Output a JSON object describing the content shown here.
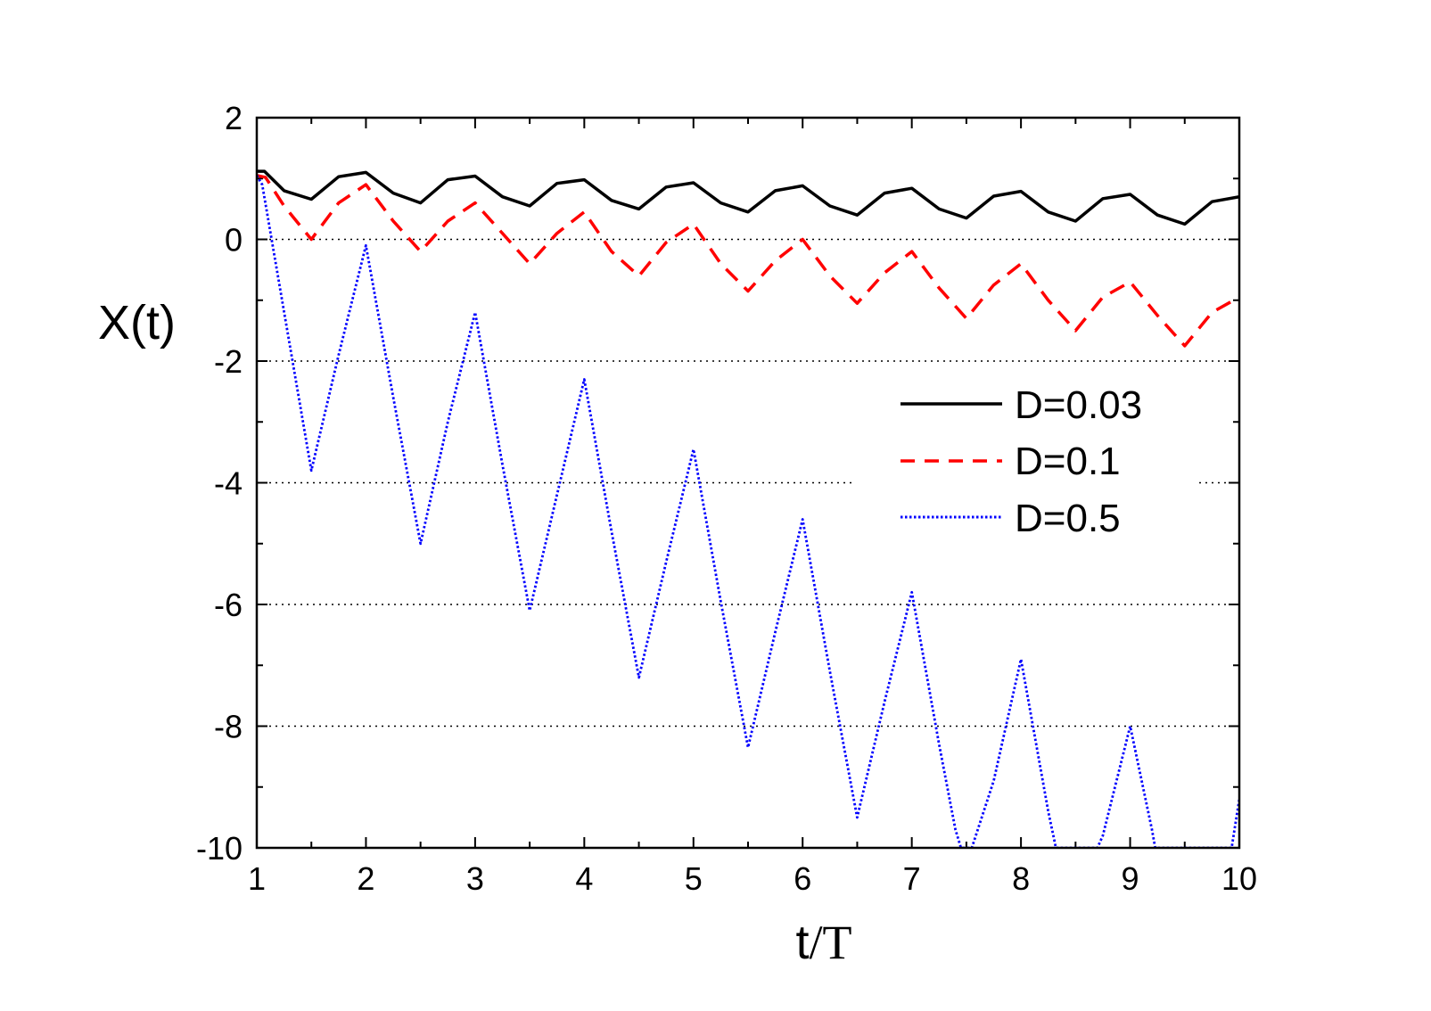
{
  "chart_data": {
    "type": "line",
    "title": "",
    "xlabel": "t/T",
    "xlabel_parts": [
      "t",
      "/T"
    ],
    "ylabel": "X(t)",
    "xlim": [
      1,
      10
    ],
    "ylim": [
      -10,
      2
    ],
    "xticks": [
      1,
      2,
      3,
      4,
      5,
      6,
      7,
      8,
      9,
      10
    ],
    "yticks": [
      2,
      0,
      -2,
      -4,
      -6,
      -8,
      -10
    ],
    "xtick_labels": [
      "1",
      "2",
      "3",
      "4",
      "5",
      "6",
      "7",
      "8",
      "9",
      "10"
    ],
    "ytick_labels": [
      "2",
      "0",
      "-2",
      "-4",
      "-6",
      "-8",
      "-10"
    ],
    "hgrid_dotted_at": [
      0,
      -2,
      -4,
      -6,
      -8
    ],
    "legend_position": "right-middle",
    "series": [
      {
        "name": "D=0.03",
        "color": "#000000",
        "style": "solid",
        "x": [
          1.0,
          1.07,
          1.25,
          1.5,
          1.75,
          2.0,
          2.25,
          2.5,
          2.75,
          3.0,
          3.25,
          3.5,
          3.75,
          4.0,
          4.25,
          4.5,
          4.75,
          5.0,
          5.25,
          5.5,
          5.75,
          6.0,
          6.25,
          6.5,
          6.75,
          7.0,
          7.25,
          7.5,
          7.75,
          8.0,
          8.25,
          8.5,
          8.75,
          9.0,
          9.25,
          9.5,
          9.75,
          10.0
        ],
        "values": [
          1.12,
          1.12,
          0.8,
          0.66,
          1.03,
          1.1,
          0.76,
          0.6,
          0.98,
          1.04,
          0.7,
          0.55,
          0.92,
          0.98,
          0.64,
          0.5,
          0.86,
          0.93,
          0.6,
          0.45,
          0.8,
          0.88,
          0.55,
          0.4,
          0.76,
          0.84,
          0.5,
          0.35,
          0.71,
          0.79,
          0.45,
          0.3,
          0.67,
          0.74,
          0.4,
          0.25,
          0.62,
          0.7
        ]
      },
      {
        "name": "D=0.1",
        "color": "#ff0000",
        "style": "dashed",
        "x": [
          1.0,
          1.08,
          1.25,
          1.5,
          1.75,
          2.0,
          2.25,
          2.5,
          2.75,
          3.0,
          3.25,
          3.5,
          3.75,
          4.0,
          4.25,
          4.5,
          4.75,
          5.0,
          5.25,
          5.5,
          5.75,
          6.0,
          6.25,
          6.5,
          6.75,
          7.0,
          7.25,
          7.5,
          7.75,
          8.0,
          8.25,
          8.5,
          8.75,
          9.0,
          9.25,
          9.5,
          9.75,
          10.0
        ],
        "values": [
          1.05,
          1.02,
          0.55,
          0.0,
          0.6,
          0.9,
          0.3,
          -0.2,
          0.3,
          0.6,
          0.1,
          -0.4,
          0.1,
          0.45,
          -0.2,
          -0.6,
          -0.05,
          0.25,
          -0.4,
          -0.85,
          -0.35,
          0.0,
          -0.6,
          -1.05,
          -0.55,
          -0.2,
          -0.8,
          -1.3,
          -0.75,
          -0.4,
          -1.0,
          -1.5,
          -0.95,
          -0.7,
          -1.25,
          -1.75,
          -1.2,
          -0.95
        ]
      },
      {
        "name": "D=0.5",
        "color": "#0000ff",
        "style": "dotted",
        "x": [
          1.0,
          1.05,
          1.5,
          1.75,
          2.0,
          2.25,
          2.5,
          2.75,
          3.0,
          3.25,
          3.5,
          3.75,
          4.0,
          4.25,
          4.5,
          4.75,
          5.0,
          5.25,
          5.5,
          5.75,
          6.0,
          6.25,
          6.5,
          6.75,
          7.0,
          7.25,
          7.4,
          7.45,
          7.55,
          7.75,
          8.0,
          8.25,
          8.32,
          8.7,
          8.75,
          9.0,
          9.2,
          9.23,
          9.93,
          10.0
        ],
        "values": [
          1.05,
          0.9,
          -3.8,
          -1.9,
          -0.1,
          -2.6,
          -5.0,
          -3.0,
          -1.2,
          -3.7,
          -6.1,
          -4.2,
          -2.3,
          -4.8,
          -7.2,
          -5.3,
          -3.45,
          -5.95,
          -8.35,
          -6.45,
          -4.6,
          -7.1,
          -9.5,
          -7.6,
          -5.8,
          -8.3,
          -9.7,
          -10.0,
          -10.0,
          -8.9,
          -6.9,
          -9.4,
          -10.0,
          -10.0,
          -9.8,
          -8.0,
          -9.7,
          -10.0,
          -10.0,
          -9.2
        ]
      }
    ]
  }
}
